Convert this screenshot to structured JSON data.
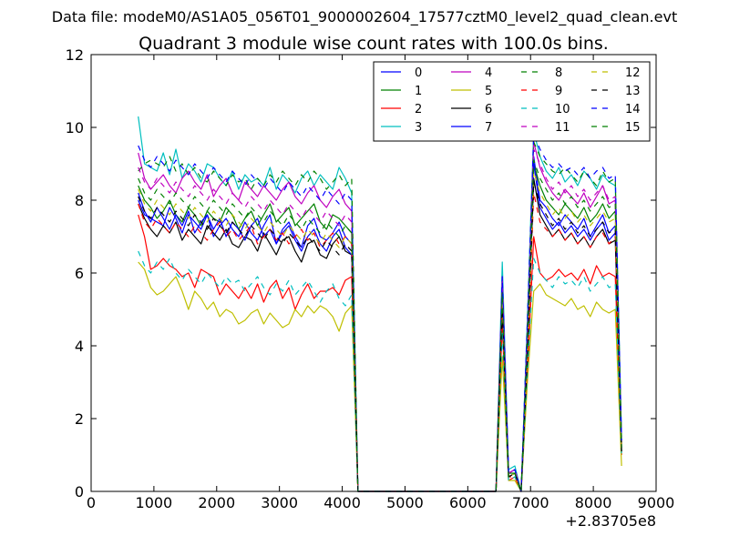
{
  "suptitle": "Data file: modeM0/AS1A05_056T01_9000002604_17577cztM0_level2_quad_clean.evt",
  "chart_data": {
    "type": "line",
    "title": "Quadrant 3 module wise count rates with 100.0s bins.",
    "xlabel": "",
    "ylabel": "",
    "x_offset_label": "+2.83705e8",
    "xlim": [
      0,
      9000
    ],
    "ylim": [
      0,
      12
    ],
    "xticks": [
      0,
      1000,
      2000,
      3000,
      4000,
      5000,
      6000,
      7000,
      8000,
      9000
    ],
    "yticks": [
      0,
      2,
      4,
      6,
      8,
      10,
      12
    ],
    "grid": false,
    "legend_position": "top-right",
    "legend_columns": 4,
    "x_start_segment1": 750,
    "x_step": 100,
    "segment1_count": 35,
    "gap_x": [
      4250,
      4350,
      4450,
      4550,
      4650,
      4750,
      4850,
      4950,
      5050,
      5150,
      5250,
      5350,
      5450,
      5550,
      5650,
      5750,
      5850,
      5950,
      6050,
      6150,
      6250,
      6350,
      6450
    ],
    "segment2_x": [
      6550,
      6650,
      6750,
      6850,
      6950,
      7050,
      7150,
      7250,
      7350,
      7450,
      7550,
      7650,
      7750,
      7850,
      7950,
      8050,
      8150,
      8250,
      8350,
      8450
    ],
    "series": [
      {
        "name": "0",
        "color": "#0000ff",
        "dash": "solid",
        "seg1": [
          8.0,
          7.6,
          7.5,
          7.4,
          7.3,
          7.8,
          7.5,
          7.1,
          7.6,
          7.4,
          7.2,
          7.6,
          7.0,
          7.3,
          7.5,
          7.2,
          7.0,
          7.4,
          7.1,
          6.9,
          7.3,
          7.6,
          6.8,
          7.2,
          7.4,
          7.0,
          6.7,
          7.3,
          7.5,
          7.0,
          6.9,
          7.1,
          7.4,
          7.0,
          6.8
        ],
        "seg2": [
          5.8,
          0.5,
          0.6,
          0.0,
          4.0,
          9.2,
          8.0,
          7.8,
          7.5,
          7.3,
          7.6,
          7.4,
          7.2,
          7.5,
          7.0,
          7.3,
          7.6,
          7.1,
          7.3,
          1.2
        ]
      },
      {
        "name": "1",
        "color": "#008000",
        "dash": "solid",
        "seg1": [
          8.4,
          8.0,
          7.8,
          7.5,
          7.7,
          8.0,
          7.6,
          7.4,
          7.8,
          7.6,
          7.3,
          7.7,
          7.5,
          7.4,
          7.8,
          7.6,
          7.2,
          7.5,
          7.7,
          7.3,
          7.6,
          7.9,
          7.4,
          7.6,
          7.8,
          7.3,
          7.5,
          7.7,
          7.9,
          7.4,
          7.2,
          7.6,
          7.5,
          7.3,
          7.1
        ],
        "seg2": [
          5.4,
          0.5,
          0.5,
          0.0,
          4.2,
          9.0,
          8.4,
          8.0,
          7.8,
          7.6,
          7.9,
          7.7,
          7.5,
          7.8,
          7.4,
          7.6,
          7.9,
          7.5,
          7.7,
          1.3
        ]
      },
      {
        "name": "2",
        "color": "#ff0000",
        "dash": "solid",
        "seg1": [
          7.6,
          7.0,
          6.1,
          6.2,
          6.4,
          6.2,
          6.1,
          5.9,
          6.0,
          5.6,
          6.1,
          6.0,
          5.9,
          5.4,
          5.7,
          5.5,
          5.3,
          5.6,
          5.3,
          5.7,
          5.2,
          5.6,
          5.8,
          5.3,
          5.6,
          5.0,
          5.4,
          5.7,
          5.3,
          5.5,
          5.5,
          5.6,
          5.4,
          5.8,
          5.9
        ],
        "seg2": [
          4.6,
          0.3,
          0.4,
          0.0,
          3.2,
          7.0,
          6.0,
          5.8,
          5.9,
          6.1,
          5.9,
          6.0,
          5.8,
          6.1,
          5.7,
          6.2,
          5.9,
          6.0,
          5.9,
          1.0
        ]
      },
      {
        "name": "3",
        "color": "#00bfbf",
        "dash": "solid",
        "seg1": [
          10.3,
          9.0,
          8.9,
          8.8,
          9.3,
          8.7,
          9.4,
          8.6,
          9.0,
          8.8,
          8.5,
          9.0,
          8.9,
          8.6,
          8.4,
          8.8,
          8.3,
          8.7,
          8.5,
          8.6,
          8.4,
          8.9,
          8.3,
          8.7,
          8.5,
          8.2,
          8.6,
          8.8,
          8.4,
          8.7,
          8.5,
          8.3,
          8.9,
          8.6,
          8.2
        ],
        "seg2": [
          6.3,
          0.6,
          0.7,
          0.0,
          4.8,
          9.9,
          9.2,
          8.8,
          8.6,
          8.9,
          8.5,
          8.7,
          8.4,
          8.8,
          8.6,
          8.3,
          8.7,
          8.5,
          8.4,
          1.5
        ]
      },
      {
        "name": "4",
        "color": "#bf00bf",
        "dash": "solid",
        "seg1": [
          9.3,
          8.6,
          8.3,
          8.5,
          8.7,
          8.4,
          8.2,
          8.6,
          8.8,
          8.5,
          8.3,
          8.7,
          8.1,
          8.4,
          8.6,
          8.2,
          8.0,
          8.5,
          8.3,
          8.1,
          8.4,
          8.2,
          8.0,
          8.3,
          8.5,
          8.1,
          7.9,
          8.2,
          8.4,
          8.0,
          7.8,
          8.1,
          8.3,
          7.9,
          7.7
        ],
        "seg2": [
          5.9,
          0.5,
          0.6,
          0.0,
          4.4,
          9.6,
          8.9,
          8.5,
          8.2,
          8.0,
          8.3,
          8.1,
          7.9,
          8.2,
          7.8,
          8.1,
          8.4,
          7.9,
          8.0,
          1.3
        ]
      },
      {
        "name": "5",
        "color": "#bfbf00",
        "dash": "solid",
        "seg1": [
          6.3,
          6.1,
          5.6,
          5.4,
          5.5,
          5.7,
          5.9,
          5.5,
          5.0,
          5.5,
          5.3,
          5.0,
          5.2,
          4.8,
          5.0,
          4.9,
          4.6,
          4.7,
          4.9,
          5.0,
          4.6,
          4.9,
          4.7,
          4.5,
          4.6,
          5.0,
          4.8,
          5.1,
          4.9,
          5.1,
          5.0,
          4.8,
          4.4,
          4.9,
          5.1
        ],
        "seg2": [
          3.7,
          0.3,
          0.3,
          0.0,
          3.0,
          5.5,
          5.7,
          5.4,
          5.3,
          5.2,
          5.1,
          5.3,
          5.0,
          5.1,
          4.8,
          5.2,
          5.0,
          4.9,
          5.0,
          0.7
        ]
      },
      {
        "name": "6",
        "color": "#000000",
        "dash": "solid",
        "seg1": [
          7.9,
          7.5,
          7.2,
          7.0,
          7.3,
          7.1,
          7.4,
          6.9,
          7.2,
          7.0,
          6.8,
          7.3,
          7.1,
          6.9,
          7.2,
          6.8,
          6.7,
          7.0,
          6.9,
          6.6,
          7.1,
          6.8,
          6.5,
          6.9,
          7.0,
          6.6,
          6.3,
          6.8,
          6.9,
          6.5,
          6.4,
          6.8,
          7.0,
          6.6,
          6.5
        ],
        "seg2": [
          5.2,
          0.4,
          0.5,
          0.0,
          3.8,
          8.6,
          7.6,
          7.3,
          7.0,
          7.2,
          6.9,
          7.1,
          6.8,
          7.0,
          6.7,
          7.0,
          7.2,
          6.8,
          6.9,
          1.1
        ]
      },
      {
        "name": "7",
        "color": "#0000ff",
        "dash": "solid",
        "seg1": [
          8.2,
          7.7,
          7.4,
          7.8,
          7.5,
          7.2,
          7.6,
          7.3,
          7.7,
          7.1,
          7.4,
          7.6,
          7.2,
          7.5,
          7.0,
          7.4,
          7.2,
          6.9,
          7.3,
          7.5,
          7.0,
          7.2,
          6.8,
          7.1,
          7.3,
          6.9,
          6.6,
          7.0,
          7.2,
          6.8,
          6.6,
          7.0,
          7.2,
          6.7,
          6.5
        ],
        "seg2": [
          5.6,
          0.4,
          0.5,
          0.0,
          3.9,
          9.0,
          7.8,
          7.5,
          7.2,
          7.4,
          7.1,
          7.3,
          7.0,
          7.2,
          6.9,
          7.2,
          7.4,
          6.9,
          7.1,
          1.2
        ]
      },
      {
        "name": "8",
        "color": "#008000",
        "dash": "dash",
        "seg1": [
          8.8,
          9.0,
          9.1,
          9.0,
          8.9,
          9.2,
          8.8,
          9.0,
          8.7,
          8.9,
          8.6,
          8.5,
          8.8,
          8.6,
          8.4,
          8.7,
          8.5,
          8.6,
          8.3,
          8.6,
          8.4,
          8.7,
          8.5,
          8.8,
          8.6,
          8.4,
          8.7,
          8.5,
          8.8,
          8.6,
          8.3,
          8.5,
          8.7,
          8.4,
          8.6
        ],
        "seg2": [
          5.5,
          0.5,
          0.6,
          0.0,
          4.6,
          9.6,
          9.2,
          9.0,
          8.8,
          8.7,
          8.9,
          8.7,
          8.5,
          8.8,
          8.6,
          8.4,
          8.8,
          8.5,
          8.6,
          1.4
        ]
      },
      {
        "name": "9",
        "color": "#ff0000",
        "dash": "dash",
        "seg1": [
          7.9,
          7.4,
          7.2,
          7.5,
          7.3,
          7.1,
          7.4,
          7.2,
          7.0,
          7.3,
          7.1,
          6.9,
          7.2,
          7.4,
          7.0,
          7.2,
          6.9,
          7.1,
          7.3,
          6.8,
          7.0,
          7.2,
          6.9,
          7.1,
          6.8,
          7.0,
          7.2,
          6.9,
          7.1,
          6.7,
          6.9,
          7.1,
          6.8,
          7.0,
          6.8
        ],
        "seg2": [
          5.1,
          0.4,
          0.4,
          0.0,
          3.6,
          8.2,
          7.4,
          7.2,
          7.0,
          7.2,
          6.9,
          7.1,
          6.8,
          7.0,
          6.7,
          7.0,
          7.1,
          6.8,
          7.0,
          1.1
        ]
      },
      {
        "name": "10",
        "color": "#00bfbf",
        "dash": "dash",
        "seg1": [
          6.6,
          6.2,
          6.0,
          6.3,
          6.1,
          6.4,
          6.0,
          5.8,
          6.1,
          5.9,
          5.7,
          6.0,
          5.8,
          5.6,
          5.9,
          5.7,
          5.8,
          5.5,
          5.7,
          5.9,
          5.6,
          5.4,
          5.7,
          5.5,
          5.8,
          5.4,
          5.6,
          5.8,
          5.5,
          5.2,
          5.5,
          5.7,
          5.3,
          5.1,
          5.4
        ],
        "seg2": [
          4.4,
          0.3,
          0.4,
          0.0,
          3.3,
          6.4,
          6.0,
          5.8,
          5.6,
          5.9,
          5.7,
          5.8,
          5.6,
          5.9,
          5.5,
          5.7,
          5.9,
          5.6,
          5.7,
          1.0
        ]
      },
      {
        "name": "11",
        "color": "#bf00bf",
        "dash": "dash",
        "seg1": [
          8.9,
          8.5,
          8.3,
          8.6,
          8.4,
          8.2,
          8.5,
          8.3,
          8.1,
          8.4,
          8.2,
          8.0,
          8.3,
          8.1,
          7.9,
          8.2,
          8.0,
          7.8,
          8.1,
          7.9,
          7.7,
          8.0,
          7.8,
          7.6,
          7.9,
          7.7,
          7.5,
          7.8,
          7.6,
          7.4,
          7.7,
          7.5,
          7.3,
          7.6,
          7.4
        ],
        "seg2": [
          5.7,
          0.5,
          0.6,
          0.0,
          4.3,
          9.4,
          9.0,
          8.6,
          8.3,
          8.5,
          8.2,
          8.4,
          8.1,
          8.3,
          8.0,
          8.2,
          8.4,
          8.0,
          8.1,
          1.3
        ]
      },
      {
        "name": "12",
        "color": "#bfbf00",
        "dash": "dash",
        "seg1": [
          8.3,
          7.9,
          7.7,
          8.0,
          7.8,
          7.6,
          7.9,
          7.7,
          7.5,
          7.8,
          7.6,
          7.4,
          7.7,
          7.5,
          7.3,
          7.6,
          7.4,
          7.2,
          7.5,
          7.3,
          7.1,
          7.4,
          7.2,
          7.0,
          7.3,
          7.1,
          6.9,
          7.2,
          7.0,
          6.8,
          7.1,
          6.9,
          6.7,
          7.0,
          6.8
        ],
        "seg2": [
          5.3,
          0.4,
          0.5,
          0.0,
          3.9,
          8.8,
          8.2,
          7.9,
          7.6,
          7.8,
          7.5,
          7.7,
          7.4,
          7.6,
          7.3,
          7.5,
          7.7,
          7.4,
          7.5,
          1.2
        ]
      },
      {
        "name": "13",
        "color": "#000000",
        "dash": "dash",
        "seg1": [
          8.1,
          7.7,
          7.5,
          7.8,
          7.6,
          7.4,
          7.7,
          7.5,
          7.3,
          7.6,
          7.4,
          7.2,
          7.5,
          7.3,
          7.1,
          7.4,
          7.2,
          7.0,
          7.3,
          7.1,
          6.9,
          7.2,
          7.0,
          6.8,
          7.1,
          6.9,
          6.7,
          7.0,
          6.8,
          6.6,
          6.9,
          6.7,
          6.5,
          6.8,
          6.6
        ],
        "seg2": [
          5.0,
          0.4,
          0.5,
          0.0,
          3.7,
          8.5,
          7.9,
          7.6,
          7.3,
          7.5,
          7.2,
          7.4,
          7.1,
          7.3,
          7.0,
          7.2,
          7.4,
          7.1,
          7.2,
          1.1
        ]
      },
      {
        "name": "14",
        "color": "#0000ff",
        "dash": "dash",
        "seg1": [
          9.5,
          9.1,
          8.9,
          9.2,
          9.0,
          8.8,
          9.1,
          8.9,
          8.7,
          9.0,
          8.8,
          8.6,
          8.9,
          8.7,
          8.5,
          8.8,
          8.6,
          8.4,
          8.7,
          8.5,
          8.3,
          8.6,
          8.4,
          8.2,
          8.5,
          8.3,
          8.1,
          8.4,
          8.2,
          8.0,
          8.3,
          8.1,
          7.9,
          8.2,
          8.0
        ],
        "seg2": [
          5.9,
          0.5,
          0.6,
          0.0,
          4.7,
          9.8,
          9.4,
          9.1,
          8.9,
          9.0,
          8.8,
          8.9,
          8.7,
          8.9,
          8.6,
          8.8,
          8.9,
          8.6,
          8.7,
          1.4
        ]
      },
      {
        "name": "15",
        "color": "#008000",
        "dash": "dash",
        "seg1": [
          8.6,
          8.2,
          8.0,
          8.3,
          8.1,
          7.9,
          8.2,
          8.0,
          7.8,
          8.1,
          7.9,
          7.7,
          8.0,
          7.8,
          7.6,
          7.9,
          7.7,
          7.5,
          7.8,
          7.6,
          7.4,
          7.7,
          7.5,
          7.3,
          7.6,
          7.4,
          7.2,
          7.5,
          7.3,
          7.1,
          7.4,
          7.2,
          7.0,
          7.3,
          7.1
        ],
        "seg2": [
          5.4,
          0.4,
          0.5,
          0.0,
          4.1,
          9.1,
          8.6,
          8.3,
          8.0,
          8.2,
          7.9,
          8.1,
          7.8,
          8.0,
          7.7,
          7.9,
          8.1,
          7.8,
          7.9,
          1.2
        ]
      }
    ]
  }
}
